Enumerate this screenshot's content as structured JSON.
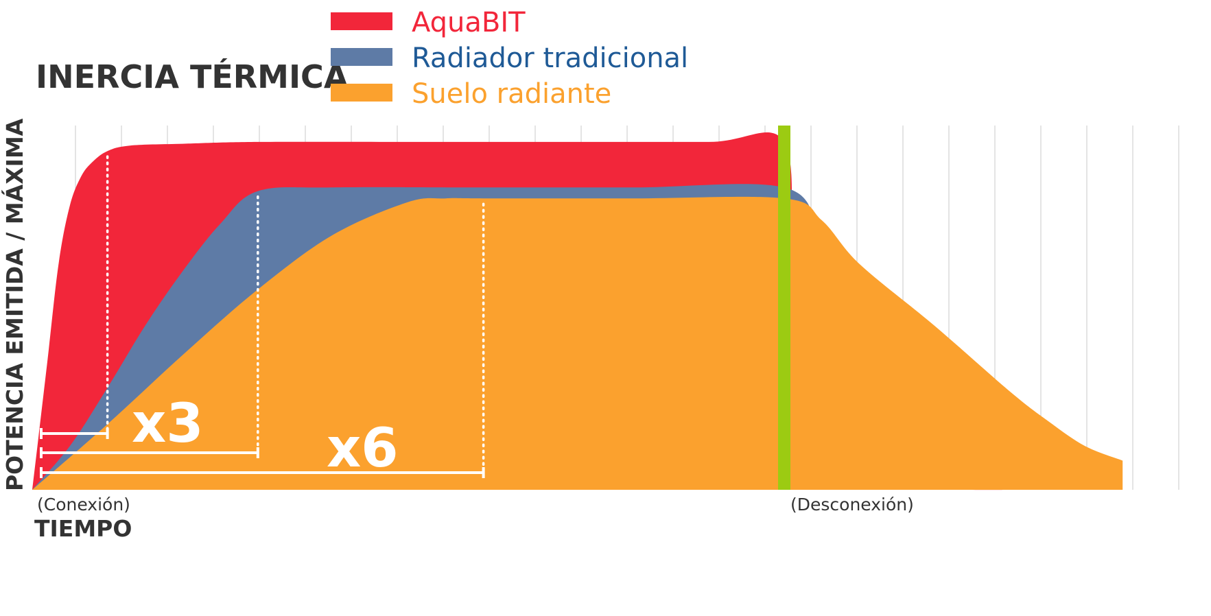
{
  "chart_data": {
    "type": "area",
    "title": "INERCIA TÉRMICA",
    "xlabel": "TIEMPO",
    "ylabel": "POTENCIA EMITIDA / MÁXIMA",
    "ylim": [
      0,
      1
    ],
    "grid": true,
    "legend_position": "top-center",
    "series": [
      {
        "name": "AquaBIT",
        "color": "#f2263a",
        "x": [
          0,
          0.02,
          0.035,
          0.05,
          0.065,
          0.08,
          0.1,
          0.13,
          0.2,
          0.3,
          0.5,
          0.7,
          0.9,
          1.0,
          1.01,
          1.03,
          1.06,
          1.09,
          1.12,
          1.15,
          1.2,
          1.25,
          1.3
        ],
        "values": [
          0,
          0.35,
          0.62,
          0.78,
          0.86,
          0.9,
          0.93,
          0.945,
          0.95,
          0.955,
          0.955,
          0.955,
          0.955,
          0.955,
          0.6,
          0.4,
          0.22,
          0.1,
          0.04,
          0.015,
          0.005,
          0.0,
          0.0
        ]
      },
      {
        "name": "Radiador tradicional",
        "color": "#5e7ba6",
        "x": [
          0,
          0.05,
          0.1,
          0.15,
          0.2,
          0.25,
          0.3,
          0.4,
          0.6,
          0.8,
          1.0,
          1.05,
          1.1,
          1.15,
          1.2,
          1.25,
          1.3,
          1.35,
          1.4
        ],
        "values": [
          0,
          0.12,
          0.28,
          0.45,
          0.6,
          0.73,
          0.82,
          0.83,
          0.83,
          0.83,
          0.83,
          0.7,
          0.55,
          0.38,
          0.22,
          0.1,
          0.03,
          0.005,
          0.0
        ]
      },
      {
        "name": "Suelo radiante",
        "color": "#fba12e",
        "x": [
          0,
          0.1,
          0.2,
          0.3,
          0.4,
          0.5,
          0.55,
          0.6,
          0.8,
          1.0,
          1.05,
          1.1,
          1.2,
          1.3,
          1.35,
          1.4,
          1.45
        ],
        "values": [
          0,
          0.18,
          0.37,
          0.55,
          0.7,
          0.79,
          0.8,
          0.8,
          0.8,
          0.8,
          0.74,
          0.62,
          0.45,
          0.27,
          0.19,
          0.12,
          0.08
        ]
      }
    ],
    "markers": {
      "connection_x": 0,
      "disconnection_x": 1.0,
      "connection_label": "(Conexión)",
      "disconnection_label": "(Desconexión)",
      "disconnection_color": "#9ccb12"
    },
    "rise_time_markers": [
      {
        "series": "AquaBIT",
        "x": 0.1
      },
      {
        "series": "Radiador tradicional",
        "x": 0.3
      },
      {
        "series": "Suelo radiante",
        "x": 0.6
      }
    ],
    "annotations": [
      {
        "text": "x3",
        "between": [
          "AquaBIT",
          "Radiador tradicional"
        ]
      },
      {
        "text": "x6",
        "between": [
          "AquaBIT",
          "Suelo radiante"
        ]
      }
    ]
  }
}
